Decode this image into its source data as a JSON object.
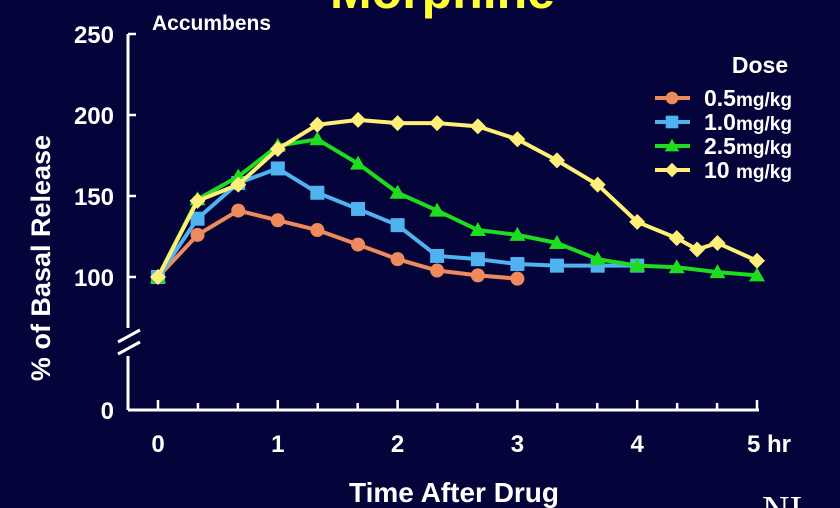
{
  "chart_data": {
    "type": "line",
    "title": "Morphine",
    "subtitle": "Accumbens",
    "ylabel": "% of Basal Release",
    "xlabel": "Time After Drug",
    "x_unit": "hr",
    "x_ticks": [
      0,
      1,
      2,
      3,
      4,
      5
    ],
    "x_tick_labels": [
      "0",
      "1",
      "2",
      "3",
      "4",
      "5 hr"
    ],
    "y_ticks": [
      0,
      100,
      150,
      200,
      250
    ],
    "y_tick_labels": [
      "0",
      "100",
      "150",
      "200",
      "250"
    ],
    "y_axis_break": [
      0,
      100
    ],
    "xlim": [
      0,
      5
    ],
    "ylim": [
      100,
      250
    ],
    "legend_title": "Dose",
    "legend_position": "right",
    "grid": false,
    "series": [
      {
        "name": "0.5mg/kg",
        "name_number": "0.5",
        "name_unit": "mg/kg",
        "marker": "circle",
        "color": "#f08a5d",
        "x": [
          0,
          0.33,
          0.67,
          1,
          1.33,
          1.67,
          2,
          2.33,
          2.67,
          3
        ],
        "y": [
          100,
          126,
          141,
          135,
          129,
          120,
          111,
          104,
          101,
          99
        ]
      },
      {
        "name": "1.0mg/kg",
        "name_number": "1.0",
        "name_unit": "mg/kg",
        "marker": "square",
        "color": "#4fb3f0",
        "x": [
          0,
          0.33,
          0.67,
          1,
          1.33,
          1.67,
          2,
          2.33,
          2.67,
          3,
          3.33,
          3.67,
          4
        ],
        "y": [
          100,
          136,
          158,
          167,
          152,
          142,
          132,
          113,
          111,
          108,
          107,
          107,
          107
        ]
      },
      {
        "name": "2.5mg/kg",
        "name_number": "2.5",
        "name_unit": "mg/kg",
        "marker": "triangle",
        "color": "#1edc1e",
        "x": [
          0,
          0.33,
          0.67,
          1,
          1.33,
          1.67,
          2,
          2.33,
          2.67,
          3,
          3.33,
          3.67,
          4,
          4.33,
          4.67,
          5
        ],
        "y": [
          100,
          148,
          162,
          181,
          185,
          170,
          152,
          141,
          129,
          126,
          121,
          111,
          107,
          106,
          103,
          101
        ]
      },
      {
        "name": "10 mg/kg",
        "name_number": "10",
        "name_unit": "mg/kg",
        "marker": "diamond",
        "color": "#ffee77",
        "x": [
          0,
          0.33,
          0.67,
          1,
          1.33,
          1.67,
          2,
          2.33,
          2.67,
          3,
          3.33,
          3.67,
          4,
          4.33,
          4.5,
          4.67,
          5
        ],
        "y": [
          100,
          147,
          157,
          179,
          194,
          197,
          195,
          195,
          193,
          185,
          172,
          157,
          134,
          124,
          117,
          121,
          110
        ]
      }
    ]
  },
  "corner_text": "NI"
}
